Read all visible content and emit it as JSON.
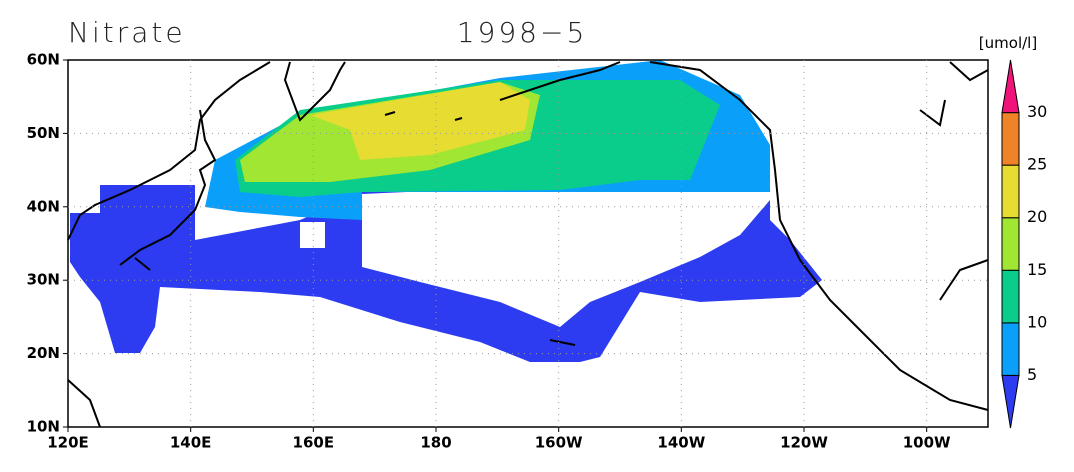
{
  "title": "Nitrate",
  "date": "1998−5",
  "units": "[umol/l]",
  "lat_labels": [
    "60N",
    "50N",
    "40N",
    "30N",
    "20N",
    "10N"
  ],
  "lon_labels": [
    "120E",
    "140E",
    "160E",
    "180",
    "160W",
    "140W",
    "120W",
    "100W"
  ],
  "colorbar": {
    "labels": [
      5,
      10,
      15,
      20,
      25,
      30
    ],
    "colors": [
      "#2d3cf0",
      "#0aa0fa",
      "#0acd8c",
      "#a0e632",
      "#e6dc32",
      "#f08228",
      "#f0147a"
    ]
  }
}
